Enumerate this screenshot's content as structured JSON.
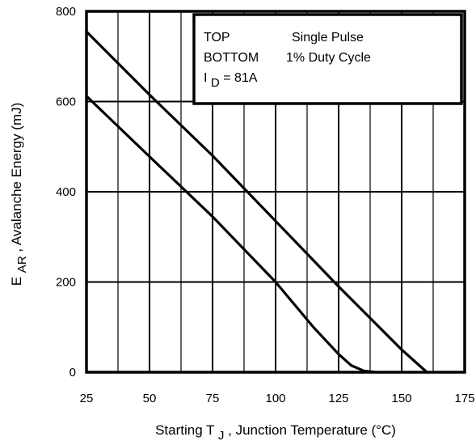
{
  "chart_data": {
    "type": "line",
    "title": "",
    "xlabel": {
      "prefix": "Starting T",
      "subscript": "J",
      "suffix": " , Junction Temperature (°C)"
    },
    "ylabel": {
      "prefix": "E",
      "subscript": "AR",
      "suffix": " , Avalanche Energy (mJ)"
    },
    "xlim": [
      25,
      175
    ],
    "ylim": [
      0,
      800
    ],
    "x_ticks": [
      "25",
      "50",
      "75",
      "100",
      "125",
      "150",
      "175"
    ],
    "y_ticks": [
      "0",
      "200",
      "400",
      "600",
      "800"
    ],
    "grid": {
      "x_step": 12.5,
      "y_step": 200,
      "x_major_step": 25
    },
    "legend": {
      "placement": "top-right",
      "rows": [
        {
          "key": "TOP",
          "value": "Single Pulse"
        },
        {
          "key": "BOTTOM",
          "value": "1% Duty Cycle"
        }
      ],
      "condition": {
        "prefix": "I",
        "subscript": "D",
        "suffix": " = 81A"
      }
    },
    "series": [
      {
        "name": "Single Pulse",
        "x": [
          25,
          50,
          75,
          100,
          125,
          150,
          160
        ],
        "y": [
          755,
          615,
          480,
          335,
          190,
          50,
          0
        ]
      },
      {
        "name": "1% Duty Cycle",
        "x": [
          25,
          50,
          75,
          100,
          115,
          125,
          130,
          135,
          140
        ],
        "y": [
          612,
          478,
          345,
          200,
          100,
          40,
          15,
          3,
          0
        ]
      }
    ]
  }
}
